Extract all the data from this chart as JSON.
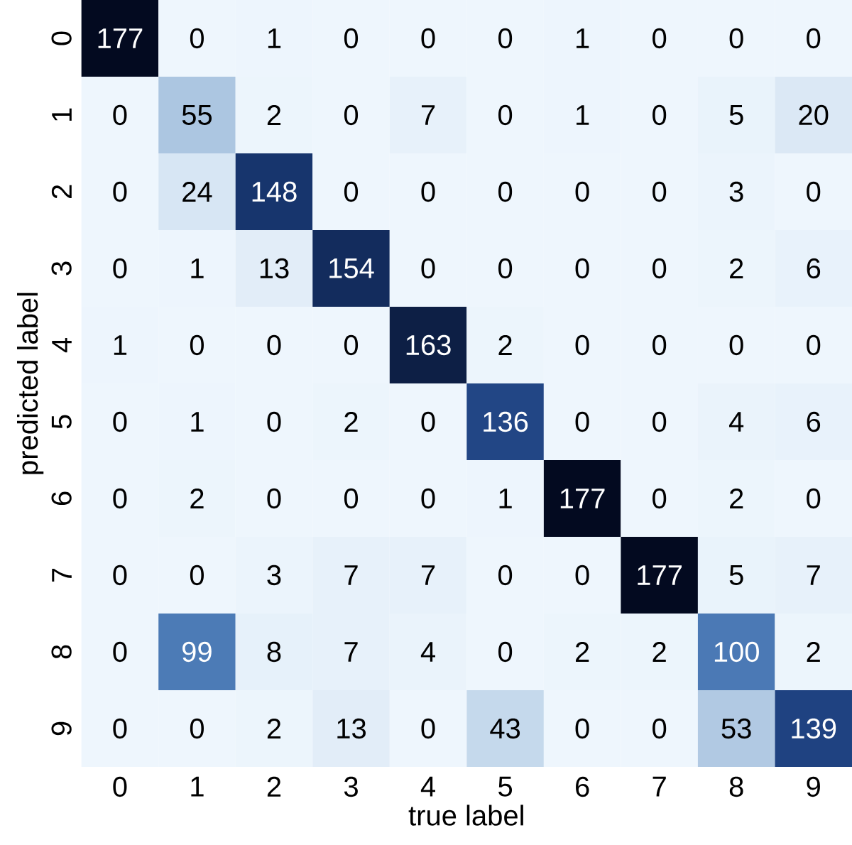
{
  "chart_data": {
    "type": "heatmap",
    "xlabel": "true label",
    "ylabel": "predicted label",
    "categories": [
      "0",
      "1",
      "2",
      "3",
      "4",
      "5",
      "6",
      "7",
      "8",
      "9"
    ],
    "y_categories": [
      "0",
      "1",
      "2",
      "3",
      "4",
      "5",
      "6",
      "7",
      "8",
      "9"
    ],
    "cells": [
      [
        177,
        0,
        1,
        0,
        0,
        0,
        1,
        0,
        0,
        0
      ],
      [
        0,
        55,
        2,
        0,
        7,
        0,
        1,
        0,
        5,
        20
      ],
      [
        0,
        24,
        148,
        0,
        0,
        0,
        0,
        0,
        3,
        0
      ],
      [
        0,
        1,
        13,
        154,
        0,
        0,
        0,
        0,
        2,
        6
      ],
      [
        1,
        0,
        0,
        0,
        163,
        2,
        0,
        0,
        0,
        0
      ],
      [
        0,
        1,
        0,
        2,
        0,
        136,
        0,
        0,
        4,
        6
      ],
      [
        0,
        2,
        0,
        0,
        0,
        1,
        177,
        0,
        2,
        0
      ],
      [
        0,
        0,
        3,
        7,
        7,
        0,
        0,
        177,
        5,
        7
      ],
      [
        0,
        99,
        8,
        7,
        4,
        0,
        2,
        2,
        100,
        2
      ],
      [
        0,
        0,
        2,
        13,
        0,
        43,
        0,
        0,
        53,
        139
      ]
    ],
    "data_labels": true
  }
}
